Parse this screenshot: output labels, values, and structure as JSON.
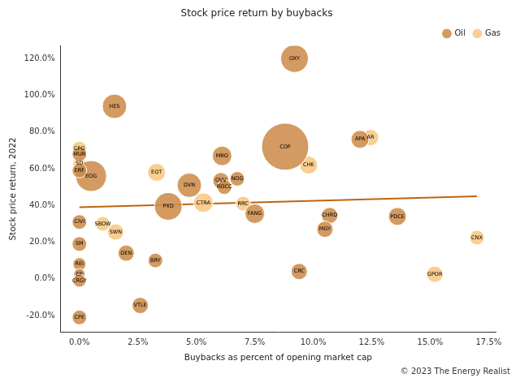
{
  "chart_data": {
    "type": "bubble",
    "title": "Stock price return by buybacks",
    "x_label": "Buybacks as percent of opening market cap",
    "y_label": "Stock price return, 2022",
    "annotation": "© 2023 The Energy Realist",
    "xlim": [
      -0.8,
      17.8
    ],
    "xticks": [
      {
        "value": 0,
        "label": "0.0%"
      },
      {
        "value": 2.5,
        "label": "2.5%"
      },
      {
        "value": 5,
        "label": "5.0%"
      },
      {
        "value": 7.5,
        "label": "7.5%"
      },
      {
        "value": 10,
        "label": "10.0%"
      },
      {
        "value": 12.5,
        "label": "12.5%"
      },
      {
        "value": 15,
        "label": "15.0%"
      },
      {
        "value": 17.5,
        "label": "17.5%"
      }
    ],
    "ylim": [
      -29,
      127
    ],
    "yticks": [
      {
        "value": -20,
        "label": "-20.0%"
      },
      {
        "value": 0,
        "label": "0.0%"
      },
      {
        "value": 20,
        "label": "20.0%"
      },
      {
        "value": 40,
        "label": "40.0%"
      },
      {
        "value": 60,
        "label": "60.0%"
      },
      {
        "value": 80,
        "label": "80.0%"
      },
      {
        "value": 100,
        "label": "100.0%"
      },
      {
        "value": 120,
        "label": "120.0%"
      }
    ],
    "grid": false,
    "legend": "upper right",
    "series": [
      {
        "name": "Oil",
        "color": "#cd8c4b",
        "labels": [
          "OXY",
          "HES",
          "COP",
          "APA",
          "MRO",
          "DVN",
          "PXD",
          "FANG",
          "NOG",
          "OVV",
          "ROCC",
          "CHRD",
          "PDCE",
          "MGY",
          "CRC",
          "DEN",
          "BRY",
          "VTLE",
          "CIVI",
          "SM",
          "REI",
          "EP",
          "CRGY",
          "CPE",
          "MUR",
          "EOG",
          "ERF"
        ],
        "x": [
          9.2,
          1.5,
          8.8,
          12.0,
          6.1,
          4.7,
          3.8,
          7.5,
          6.75,
          6.05,
          6.2,
          10.7,
          13.6,
          10.5,
          9.4,
          2.0,
          3.25,
          2.6,
          0,
          0,
          0,
          0,
          0,
          0,
          0,
          0.5,
          0
        ],
        "y": [
          120,
          94,
          72,
          76,
          67,
          51,
          39.5,
          35.5,
          54.5,
          53.5,
          50,
          34.5,
          34,
          27,
          4,
          14,
          10,
          -14.5,
          31,
          19,
          8,
          2.5,
          -1,
          -21,
          68,
          56,
          59
        ],
        "sizes": [
          17,
          15,
          29,
          11,
          12,
          15,
          17,
          12,
          9,
          10,
          9,
          10,
          11,
          10,
          10,
          10,
          9,
          10,
          9,
          9,
          8,
          7,
          8,
          9,
          9,
          19,
          9
        ]
      },
      {
        "name": "Gas",
        "color": "#f7c882",
        "labels": [
          "AR",
          "CHK",
          "EQT",
          "CTRA",
          "RRC",
          "CNX",
          "GPOR",
          "SBOW",
          "SWN",
          "CPG",
          "SD"
        ],
        "x": [
          12.45,
          9.8,
          3.3,
          5.3,
          7.0,
          17.0,
          15.2,
          1.0,
          1.55,
          0,
          0
        ],
        "y": [
          77,
          62,
          58,
          41.5,
          41,
          22.5,
          2.5,
          30,
          25.5,
          71,
          63
        ],
        "sizes": [
          10,
          11,
          11,
          12,
          9,
          9,
          10,
          9,
          10,
          9,
          8
        ]
      },
      {
        "type": "line",
        "color": "#c0640f",
        "x": [
          0,
          17
        ],
        "y": [
          39,
          45
        ]
      }
    ]
  }
}
